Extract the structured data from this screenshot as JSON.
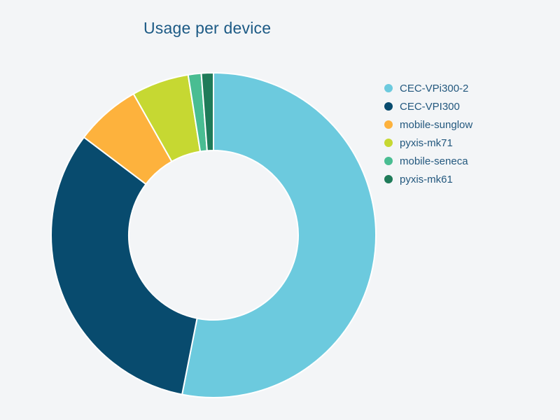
{
  "page": {
    "background_color": "#f3f5f7"
  },
  "chart_data": {
    "type": "pie",
    "title": "Usage per device",
    "labels": [
      "CEC-VPi300-2",
      "CEC-VPI300",
      "mobile-sunglow",
      "pyxis-mk71",
      "mobile-seneca",
      "pyxis-mk61"
    ],
    "values_pct": [
      53.1,
      32.2,
      6.5,
      5.7,
      1.3,
      1.2
    ],
    "colors": [
      "#6CCADE",
      "#084B6E",
      "#FDB23D",
      "#C6D832",
      "#49BD92",
      "#1F7B59"
    ],
    "hole_ratio": 0.52,
    "direction": "clockwise",
    "start_angle_deg": 0,
    "separator_color": "#ffffff",
    "legend_position": "right",
    "title_color": "#1c5a85",
    "legend_text_color": "#23587e"
  }
}
